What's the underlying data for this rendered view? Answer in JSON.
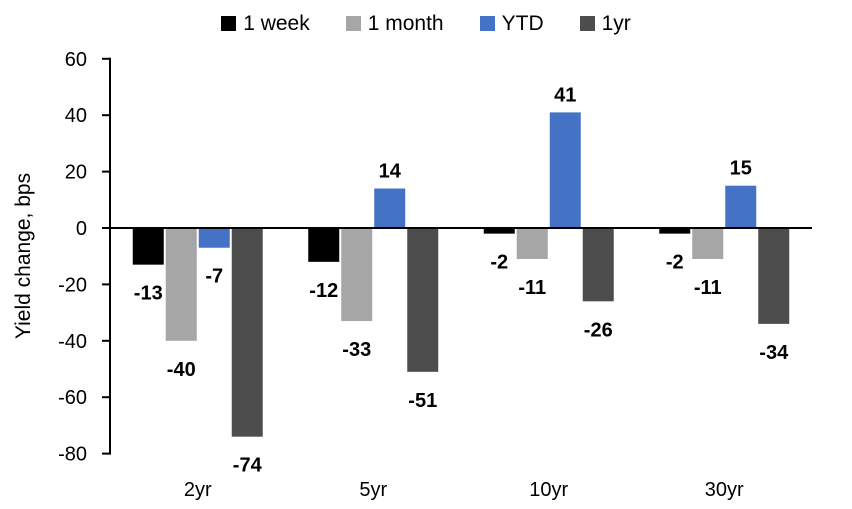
{
  "chart_data": {
    "type": "bar",
    "title": "",
    "ylabel": "Yield change, bps",
    "xlabel": "",
    "categories": [
      "2yr",
      "5yr",
      "10yr",
      "30yr"
    ],
    "series": [
      {
        "name": "1 week",
        "color": "#000000",
        "values": [
          -13,
          -12,
          -2,
          -2
        ]
      },
      {
        "name": "1 month",
        "color": "#A6A6A6",
        "values": [
          -40,
          -33,
          -11,
          -11
        ]
      },
      {
        "name": "YTD",
        "color": "#4472C4",
        "values": [
          -7,
          14,
          41,
          15
        ]
      },
      {
        "name": "1yr",
        "color": "#4D4D4D",
        "values": [
          -74,
          -51,
          -26,
          -34
        ]
      }
    ],
    "ylim": [
      -80,
      60
    ],
    "yticks": [
      60,
      40,
      20,
      0,
      -20,
      -40,
      -60,
      -80
    ],
    "data_labels": true,
    "grid": false,
    "legend_position": "top",
    "axis_color": "#000000"
  }
}
